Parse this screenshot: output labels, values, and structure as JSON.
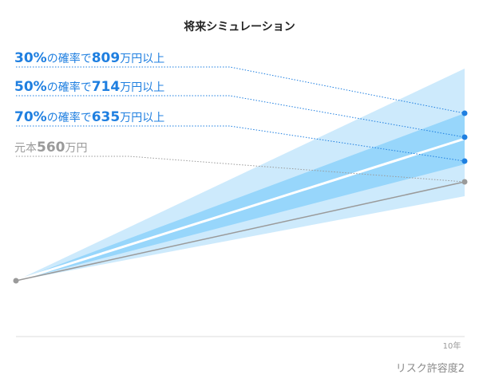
{
  "chart_data": {
    "type": "area",
    "title": "将来シミュレーション",
    "x": [
      0,
      10
    ],
    "x_tick_label": "10年",
    "start_value": 560,
    "series": [
      {
        "name": "30%の確率で809万円以上",
        "values": [
          560,
          809
        ],
        "color": "#1f7fe0"
      },
      {
        "name": "50%の確率で714万円以上",
        "values": [
          560,
          714
        ],
        "color": "#1f7fe0"
      },
      {
        "name": "70%の確率で635万円以上",
        "values": [
          560,
          635
        ],
        "color": "#1f7fe0"
      },
      {
        "name": "元本560万円",
        "values": [
          560,
          560
        ],
        "color": "#9a9a9a"
      }
    ],
    "labels": [
      {
        "pre": "",
        "big": "30%",
        "mid": "の確率で",
        "num": "809",
        "post": "万円以上",
        "color": "#1f7fe0"
      },
      {
        "pre": "",
        "big": "50%",
        "mid": "の確率で",
        "num": "714",
        "post": "万円以上",
        "color": "#1f7fe0"
      },
      {
        "pre": "",
        "big": "70%",
        "mid": "の確率で",
        "num": "635",
        "post": "万円以上",
        "color": "#1f7fe0"
      },
      {
        "pre": "元本",
        "big": "",
        "mid": "",
        "num": "560",
        "post": "万円",
        "color": "#9a9a9a"
      }
    ],
    "band_colors": {
      "outer": "#cdeafc",
      "inner": "#97d6fb",
      "median": "#ffffff",
      "principal": "#9a9a9a"
    },
    "grid": false,
    "legend": "none"
  },
  "caption": "リスク許容度2"
}
